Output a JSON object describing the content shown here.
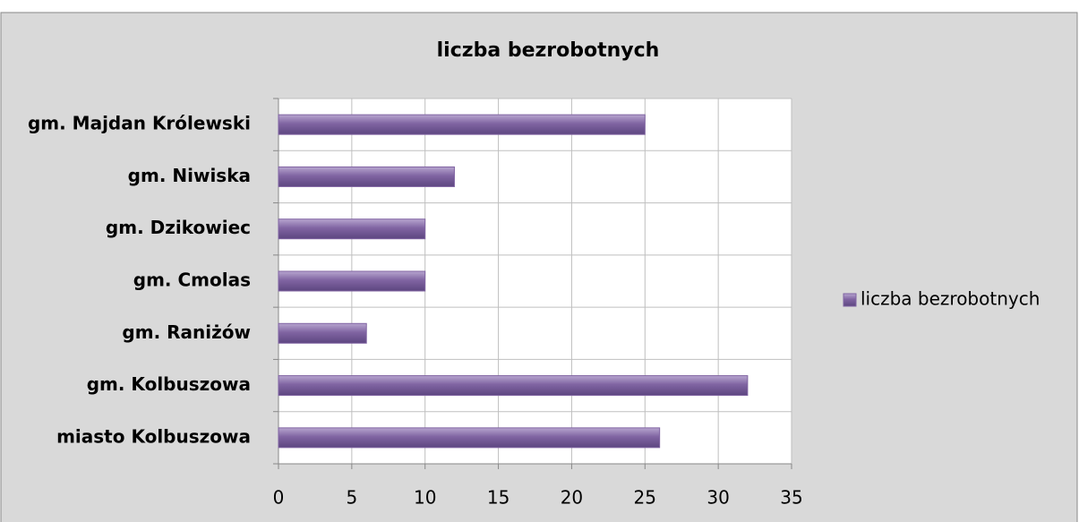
{
  "chart_data": {
    "type": "barh",
    "title": "liczba bezrobotnych",
    "categories": [
      "gm. Majdan Królewski",
      "gm. Niwiska",
      "gm. Dzikowiec",
      "gm. Cmolas",
      "gm. Raniżów",
      "gm. Kolbuszowa",
      "miasto Kolbuszowa"
    ],
    "series": [
      {
        "name": "liczba bezrobotnych",
        "color": "#8064a2",
        "values": [
          25,
          12,
          10,
          10,
          6,
          32,
          26
        ]
      }
    ],
    "xlim": [
      0,
      35
    ],
    "xticks": [
      0,
      5,
      10,
      15,
      20,
      25,
      30,
      35
    ],
    "grid": true,
    "legend": "right"
  }
}
